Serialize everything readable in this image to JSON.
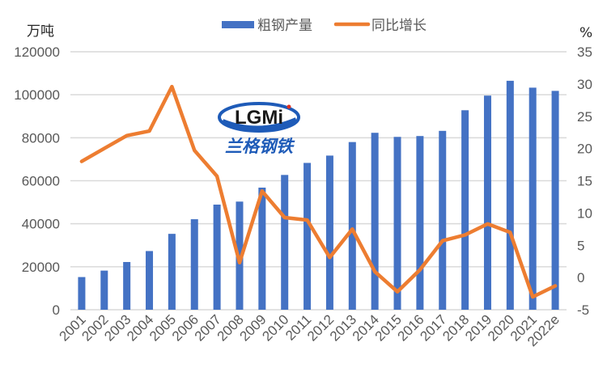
{
  "chart_data": {
    "type": "bar+line",
    "title": "",
    "legend_position": "top",
    "legend": [
      {
        "name": "粗钢产量",
        "color": "#4472C4",
        "kind": "bar"
      },
      {
        "name": "同比增长",
        "color": "#ED7D31",
        "kind": "line"
      }
    ],
    "categories": [
      "2001",
      "2002",
      "2003",
      "2004",
      "2005",
      "2006",
      "2007",
      "2008",
      "2009",
      "2010",
      "2011",
      "2012",
      "2013",
      "2014",
      "2015",
      "2016",
      "2017",
      "2018",
      "2019",
      "2020",
      "2021",
      "2022e"
    ],
    "series": [
      {
        "name": "粗钢产量",
        "axis": "left",
        "type": "bar",
        "color": "#4472C4",
        "values": [
          15200,
          18200,
          22200,
          27300,
          35300,
          42100,
          48900,
          50300,
          56800,
          62700,
          68300,
          71700,
          78000,
          82300,
          80400,
          80800,
          83200,
          92800,
          99600,
          106500,
          103300,
          101800
        ]
      },
      {
        "name": "同比增长",
        "axis": "right",
        "type": "line",
        "color": "#ED7D31",
        "values": [
          18.0,
          20.0,
          22.0,
          22.7,
          29.6,
          19.7,
          15.7,
          2.3,
          13.4,
          9.3,
          8.9,
          3.1,
          7.5,
          0.9,
          -2.2,
          1.2,
          5.7,
          6.6,
          8.3,
          7.0,
          -3.0,
          -1.3
        ]
      }
    ],
    "y_left": {
      "label": "万吨",
      "ylim": [
        0,
        120000
      ],
      "ticks": [
        "0",
        "20000",
        "40000",
        "60000",
        "80000",
        "100000",
        "120000"
      ]
    },
    "y_right": {
      "label": "%",
      "ylim": [
        -5,
        35
      ],
      "ticks": [
        "-5",
        "0",
        "5",
        "10",
        "15",
        "20",
        "25",
        "30",
        "35"
      ]
    },
    "xlabel": "",
    "grid": true
  },
  "watermark": {
    "logo_text": "LGMi",
    "logo_cn": "兰格钢铁"
  }
}
